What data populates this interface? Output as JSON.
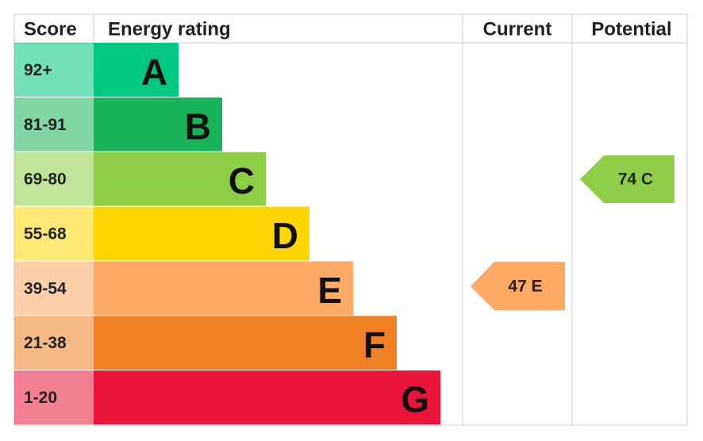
{
  "header": {
    "score": "Score",
    "rating": "Energy rating",
    "current": "Current",
    "potential": "Potential"
  },
  "bands": [
    {
      "score": "92+",
      "letter": "A",
      "color": "#00c781"
    },
    {
      "score": "81-91",
      "letter": "B",
      "color": "#19b459"
    },
    {
      "score": "69-80",
      "letter": "C",
      "color": "#8dce46"
    },
    {
      "score": "55-68",
      "letter": "D",
      "color": "#ffd500"
    },
    {
      "score": "39-54",
      "letter": "E",
      "color": "#fcaa65"
    },
    {
      "score": "21-38",
      "letter": "F",
      "color": "#ef8023"
    },
    {
      "score": "1-20",
      "letter": "G",
      "color": "#e9153b"
    }
  ],
  "current": {
    "label": "47 E",
    "color": "#fcaa65"
  },
  "potential": {
    "label": "74 C",
    "color": "#8dce46"
  }
}
